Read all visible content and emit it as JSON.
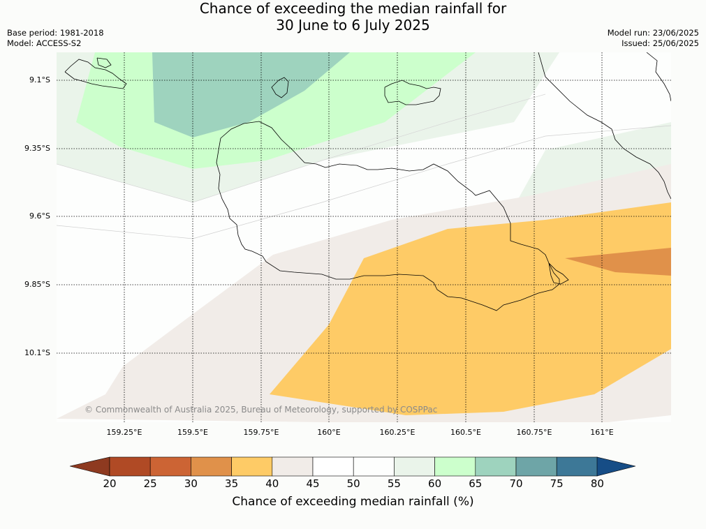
{
  "title": {
    "line1": "Chance of exceeding the median rainfall for",
    "line2": "30 June to 6 July 2025"
  },
  "meta": {
    "base_period": "Base period: 1981-2018",
    "model": "Model: ACCESS-S2",
    "model_run": "Model run: 23/06/2025",
    "issued": "Issued: 25/06/2025"
  },
  "map": {
    "lat_labels": [
      "9.1°S",
      "9.35°S",
      "9.6°S",
      "9.85°S",
      "10.1°S"
    ],
    "lon_labels": [
      "159.25°E",
      "159.5°E",
      "159.75°E",
      "160°E",
      "160.25°E",
      "160.5°E",
      "160.75°E",
      "161°E"
    ],
    "copyright": "© Commonwealth of Australia 2025, Bureau of Meteorology, supported by COSPPac"
  },
  "colorbar": {
    "label": "Chance of exceeding median rainfall (%)",
    "ticks": [
      "20",
      "25",
      "30",
      "35",
      "40",
      "45",
      "50",
      "55",
      "60",
      "65",
      "70",
      "75",
      "80"
    ],
    "colors": [
      "#b04a25",
      "#cc6434",
      "#e0914a",
      "#fecb66",
      "#f1ece8",
      "#ffffff",
      "#fdfefd",
      "#eaf4ea",
      "#ccffcc",
      "#9ed3be",
      "#6ea5a7",
      "#3d7897"
    ],
    "under_color": "#8e3a20",
    "over_color": "#164d86"
  }
}
